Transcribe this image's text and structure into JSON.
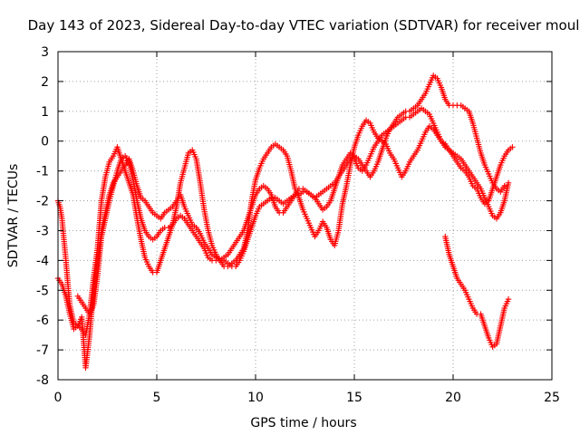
{
  "chart_data": {
    "type": "scatter",
    "title": "Day 143 of 2023, Sidereal Day-to-day VTEC variation (SDTVAR) for receiver moul",
    "xlabel": "GPS time / hours",
    "ylabel": "SDTVAR / TECUs",
    "xlim": [
      0,
      25
    ],
    "ylim": [
      -8,
      3
    ],
    "xticks": [
      "0",
      "5",
      "10",
      "15",
      "20",
      "25"
    ],
    "yticks": [
      "-8",
      "-7",
      "-6",
      "-5",
      "-4",
      "-3",
      "-2",
      "-1",
      "0",
      "1",
      "2",
      "3"
    ],
    "grid": true,
    "marker": "plus",
    "color": "#ff0000",
    "series": [
      {
        "x": [
          0.0,
          0.1,
          0.2,
          0.3,
          0.4,
          0.5,
          0.6,
          0.8,
          1.0,
          1.2,
          1.4,
          1.6,
          1.8,
          2.0,
          2.2,
          2.4,
          2.6,
          2.8,
          3.0,
          3.2,
          3.4,
          3.6,
          3.8,
          4.0,
          4.2,
          4.4,
          4.6,
          4.8,
          5.0,
          5.2,
          5.4,
          5.6,
          5.8,
          6.0,
          6.2,
          6.4,
          6.6,
          6.8,
          7.0,
          7.2,
          7.4,
          7.6,
          7.8,
          8.0,
          8.2,
          8.4,
          8.6,
          8.8,
          9.0,
          9.2,
          9.4,
          9.6,
          9.8,
          10.0,
          10.2,
          10.4,
          10.6,
          10.8,
          11.0,
          11.2,
          11.4,
          11.6,
          11.8,
          12.0,
          12.2,
          12.4,
          12.6,
          12.8,
          13.0,
          13.2,
          13.4,
          13.6,
          13.8,
          14.0,
          14.2,
          14.4,
          14.6,
          14.8,
          15.0,
          15.2,
          15.4,
          15.6,
          15.8,
          16.0,
          16.2,
          16.4,
          16.6,
          16.8,
          17.0,
          17.2,
          17.4,
          17.6,
          17.8,
          18.0,
          18.2,
          18.4,
          18.6,
          18.8,
          19.0,
          19.2,
          19.4,
          19.6,
          19.8,
          20.0,
          20.2,
          20.4,
          20.6,
          20.8,
          21.0,
          21.2,
          21.4,
          21.6,
          21.8,
          22.0,
          22.2,
          22.4,
          22.6,
          22.8,
          23.0
        ],
        "y": [
          -2.0,
          -2.2,
          -2.6,
          -3.3,
          -4.0,
          -4.8,
          -5.5,
          -6.1,
          -6.2,
          -6.3,
          -6.5,
          -5.8,
          -4.6,
          -3.6,
          -2.0,
          -1.2,
          -0.7,
          -0.5,
          -0.2,
          -0.6,
          -1.0,
          -1.4,
          -1.8,
          -2.6,
          -3.3,
          -3.9,
          -4.2,
          -4.4,
          -4.4,
          -4.0,
          -3.6,
          -3.2,
          -2.8,
          -2.2,
          -1.4,
          -0.9,
          -0.4,
          -0.3,
          -0.6,
          -1.4,
          -2.3,
          -3.0,
          -3.5,
          -3.8,
          -4.0,
          -4.2,
          -4.2,
          -4.1,
          -4.0,
          -3.8,
          -3.6,
          -3.0,
          -2.0,
          -1.3,
          -0.9,
          -0.6,
          -0.4,
          -0.2,
          -0.1,
          -0.2,
          -0.3,
          -0.5,
          -1.0,
          -1.6,
          -1.9,
          -2.3,
          -2.6,
          -2.9,
          -3.2,
          -3.0,
          -2.7,
          -2.9,
          -3.3,
          -3.5,
          -3.0,
          -2.1,
          -1.5,
          -0.8,
          -0.2,
          0.2,
          0.5,
          0.7,
          0.6,
          0.3,
          0.1,
          0.0,
          -0.1,
          -0.4,
          -0.6,
          -0.9,
          -1.2,
          -1.0,
          -0.7,
          -0.5,
          -0.3,
          0.0,
          0.3,
          0.5,
          0.4,
          0.2,
          0.0,
          -0.1,
          -0.3,
          -0.5,
          -0.7,
          -0.9,
          -1.0,
          -1.2,
          -1.5,
          -1.6,
          -1.9,
          -2.1,
          -2.0,
          -1.6,
          -1.2,
          -0.8,
          -0.5,
          -0.3,
          -0.2
        ]
      },
      {
        "x": [
          0.0,
          0.2,
          0.4,
          0.6,
          0.8,
          1.0,
          1.2,
          1.4,
          1.6,
          1.8,
          2.0,
          2.2,
          2.4,
          2.6,
          2.8,
          3.0,
          3.2,
          3.4,
          3.6,
          3.8,
          4.0,
          4.2,
          4.4,
          4.6,
          4.8,
          5.0,
          5.2,
          5.4,
          5.6,
          5.8,
          6.0,
          6.2,
          6.4,
          6.6,
          6.8,
          7.0,
          7.2,
          7.4,
          7.6,
          7.8,
          8.0,
          8.2,
          8.4,
          8.6,
          8.8,
          9.0,
          9.2,
          9.4,
          9.6,
          9.8,
          10.0,
          10.2,
          10.4,
          10.6,
          10.8,
          11.0,
          11.2,
          11.4,
          11.6,
          11.8,
          12.0,
          12.2,
          12.4,
          12.6,
          12.8,
          13.0,
          13.2,
          13.4,
          13.6,
          13.8,
          14.0,
          14.2,
          14.4,
          14.6,
          14.8,
          15.0,
          15.2,
          15.4,
          15.6,
          15.8,
          16.0,
          16.2,
          16.4,
          16.6,
          16.8,
          17.0,
          17.2,
          17.4,
          17.6,
          17.8,
          18.0,
          18.2,
          18.4,
          18.6,
          18.8,
          19.0,
          19.2,
          19.4,
          19.6,
          19.8,
          20.0,
          20.2,
          20.4,
          20.6,
          20.8,
          21.0,
          21.2,
          21.4,
          21.6,
          21.8,
          22.0,
          22.2,
          22.4,
          22.6
        ],
        "y": [
          -4.6,
          -4.8,
          -5.2,
          -5.8,
          -6.3,
          -6.2,
          -5.9,
          -7.6,
          -6.5,
          -5.0,
          -4.0,
          -3.0,
          -2.4,
          -1.8,
          -1.4,
          -1.2,
          -1.0,
          -0.8,
          -0.6,
          -1.0,
          -1.5,
          -1.9,
          -2.0,
          -2.2,
          -2.4,
          -2.5,
          -2.6,
          -2.4,
          -2.3,
          -2.2,
          -2.0,
          -1.8,
          -2.2,
          -2.5,
          -2.8,
          -2.9,
          -3.1,
          -3.4,
          -3.6,
          -3.8,
          -3.9,
          -4.0,
          -4.0,
          -4.1,
          -4.2,
          -4.2,
          -4.0,
          -3.7,
          -3.3,
          -2.9,
          -2.5,
          -2.2,
          -2.1,
          -2.0,
          -1.9,
          -1.9,
          -2.0,
          -2.1,
          -2.0,
          -1.9,
          -1.8,
          -1.8,
          -1.7,
          -1.7,
          -1.8,
          -1.9,
          -1.8,
          -1.7,
          -1.6,
          -1.5,
          -1.4,
          -1.2,
          -1.0,
          -0.8,
          -0.6,
          -0.5,
          -0.6,
          -0.8,
          -1.0,
          -1.2,
          -1.0,
          -0.7,
          -0.3,
          0.1,
          0.4,
          0.6,
          0.8,
          0.9,
          1.0,
          1.0,
          1.1,
          1.2,
          1.4,
          1.6,
          1.9,
          2.2,
          2.1,
          1.8,
          1.4,
          1.2,
          1.2,
          1.2,
          1.2,
          1.1,
          1.0,
          0.6,
          0.1,
          -0.4,
          -0.8,
          -1.1,
          -1.4,
          -1.6,
          -1.7,
          -1.5
        ]
      },
      {
        "x": [
          19.6,
          19.8,
          20.0,
          20.2,
          20.4,
          20.6,
          20.8,
          21.0,
          21.2,
          21.4,
          21.6,
          21.8,
          22.0,
          22.2,
          22.4,
          22.6,
          22.8
        ],
        "y": [
          -3.2,
          -3.8,
          -4.2,
          -4.6,
          -4.8,
          -5.0,
          -5.3,
          -5.6,
          -5.8,
          -5.8,
          -6.2,
          -6.6,
          -6.9,
          -6.8,
          -6.2,
          -5.6,
          -5.3
        ]
      },
      {
        "x": [
          1.0,
          1.2,
          1.4,
          1.6,
          1.8,
          2.0,
          2.2,
          2.4,
          2.6,
          2.8,
          3.0,
          3.2,
          3.4,
          3.6,
          3.8,
          4.0,
          4.2,
          4.4,
          4.6,
          4.8,
          5.0,
          5.2,
          5.4,
          5.6,
          5.8,
          6.0,
          6.2,
          6.4,
          6.6,
          6.8,
          7.0,
          7.2,
          7.4,
          7.6,
          7.8,
          8.0,
          8.2,
          8.4,
          8.6,
          8.8,
          9.0,
          9.2,
          9.4,
          9.6,
          9.8,
          10.0,
          10.2,
          10.4,
          10.6,
          10.8,
          11.0,
          11.2,
          11.4,
          11.6,
          11.8,
          12.0,
          12.2,
          12.4,
          12.6,
          12.8,
          13.0,
          13.2,
          13.4,
          13.6,
          13.8,
          14.0,
          14.2,
          14.4,
          14.6,
          14.8,
          15.0,
          15.2,
          15.4,
          15.6,
          15.8,
          16.0,
          16.2,
          16.4,
          16.6,
          16.8,
          17.0,
          17.2,
          17.4,
          17.6,
          17.8,
          18.0,
          18.2,
          18.4,
          18.6,
          18.8,
          19.0,
          19.2,
          19.4,
          19.6,
          19.8,
          20.0,
          20.2,
          20.4,
          20.6,
          20.8,
          21.0,
          21.2,
          21.4,
          21.6,
          21.8,
          22.0,
          22.2,
          22.4,
          22.6,
          22.8
        ],
        "y": [
          -5.2,
          -5.4,
          -5.6,
          -5.8,
          -5.5,
          -4.5,
          -3.2,
          -2.6,
          -2.0,
          -1.5,
          -1.0,
          -0.6,
          -0.5,
          -0.7,
          -1.3,
          -2.0,
          -2.6,
          -3.0,
          -3.2,
          -3.3,
          -3.2,
          -3.0,
          -2.9,
          -2.9,
          -2.8,
          -2.6,
          -2.5,
          -2.6,
          -2.8,
          -3.0,
          -3.2,
          -3.4,
          -3.6,
          -3.9,
          -4.0,
          -4.0,
          -4.0,
          -3.9,
          -3.8,
          -3.6,
          -3.4,
          -3.2,
          -3.0,
          -2.6,
          -2.2,
          -1.8,
          -1.6,
          -1.5,
          -1.6,
          -1.8,
          -2.2,
          -2.4,
          -2.4,
          -2.2,
          -2.0,
          -1.8,
          -1.6,
          -1.6,
          -1.7,
          -1.8,
          -1.9,
          -2.1,
          -2.3,
          -2.2,
          -2.0,
          -1.6,
          -1.2,
          -0.8,
          -0.6,
          -0.4,
          -0.6,
          -0.9,
          -1.0,
          -0.8,
          -0.5,
          -0.2,
          0.0,
          0.2,
          0.3,
          0.4,
          0.5,
          0.6,
          0.7,
          0.8,
          0.8,
          0.9,
          1.0,
          1.1,
          1.0,
          0.9,
          0.6,
          0.3,
          0.0,
          -0.2,
          -0.3,
          -0.4,
          -0.5,
          -0.6,
          -0.8,
          -1.0,
          -1.2,
          -1.4,
          -1.6,
          -1.9,
          -2.2,
          -2.5,
          -2.6,
          -2.4,
          -2.0,
          -1.4
        ]
      }
    ]
  }
}
